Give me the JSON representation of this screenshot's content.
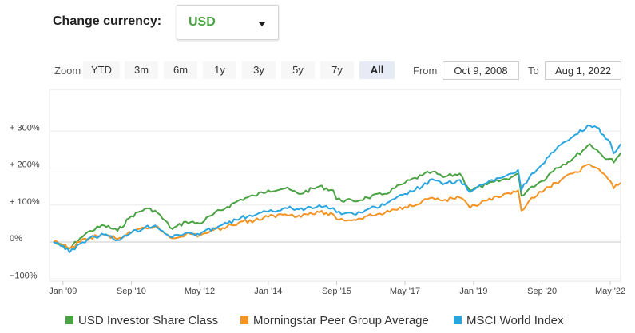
{
  "currency": {
    "label": "Change currency:",
    "selected": "USD"
  },
  "zoom": {
    "label": "Zoom",
    "buttons": [
      "YTD",
      "3m",
      "6m",
      "1y",
      "3y",
      "5y",
      "7y",
      "All"
    ],
    "active": "All"
  },
  "range": {
    "from_label": "From",
    "from_value": "Oct 9, 2008",
    "to_label": "To",
    "to_value": "Aug 1, 2022"
  },
  "colors": {
    "green": "#4aa343",
    "orange": "#f39321",
    "blue": "#2aa6df"
  },
  "chart_data": {
    "type": "line",
    "title": "",
    "xlabel": "",
    "ylabel": "",
    "ylim": [
      -100,
      350
    ],
    "xlim": [
      "2008-10-09",
      "2022-08-01"
    ],
    "y_ticks": [
      {
        "value": 300,
        "label": "+ 300%"
      },
      {
        "value": 200,
        "label": "+ 200%"
      },
      {
        "value": 100,
        "label": "+ 100%"
      },
      {
        "value": 0,
        "label": "0%"
      },
      {
        "value": -100,
        "label": "−100%"
      }
    ],
    "x_ticks": [
      {
        "date": "2009-01-01",
        "label": "Jan '09"
      },
      {
        "date": "2010-09-01",
        "label": "Sep '10"
      },
      {
        "date": "2012-05-01",
        "label": "May '12"
      },
      {
        "date": "2014-01-01",
        "label": "Jan '14"
      },
      {
        "date": "2015-09-01",
        "label": "Sep '15"
      },
      {
        "date": "2017-05-01",
        "label": "May '17"
      },
      {
        "date": "2019-01-01",
        "label": "Jan '19"
      },
      {
        "date": "2020-09-01",
        "label": "Sep '20"
      },
      {
        "date": "2022-05-01",
        "label": "May '22"
      }
    ],
    "legend_position": "bottom",
    "series": [
      {
        "name": "USD Investor Share Class",
        "color": "#4aa343",
        "points": [
          [
            "2008-10-09",
            0
          ],
          [
            "2009-01-01",
            -12
          ],
          [
            "2009-03-01",
            -18
          ],
          [
            "2009-06-01",
            10
          ],
          [
            "2009-09-01",
            30
          ],
          [
            "2010-01-01",
            45
          ],
          [
            "2010-05-01",
            30
          ],
          [
            "2010-09-01",
            70
          ],
          [
            "2011-01-01",
            90
          ],
          [
            "2011-04-01",
            85
          ],
          [
            "2011-09-01",
            35
          ],
          [
            "2012-01-01",
            55
          ],
          [
            "2012-05-01",
            50
          ],
          [
            "2012-09-01",
            75
          ],
          [
            "2013-01-01",
            95
          ],
          [
            "2013-05-01",
            115
          ],
          [
            "2013-09-01",
            125
          ],
          [
            "2014-01-01",
            140
          ],
          [
            "2014-06-01",
            145
          ],
          [
            "2014-10-01",
            130
          ],
          [
            "2015-04-01",
            150
          ],
          [
            "2015-08-01",
            140
          ],
          [
            "2015-09-01",
            115
          ],
          [
            "2016-02-01",
            110
          ],
          [
            "2016-06-01",
            120
          ],
          [
            "2016-11-01",
            130
          ],
          [
            "2017-05-01",
            160
          ],
          [
            "2017-10-01",
            180
          ],
          [
            "2018-01-01",
            190
          ],
          [
            "2018-04-01",
            175
          ],
          [
            "2018-09-01",
            185
          ],
          [
            "2018-12-01",
            140
          ],
          [
            "2019-05-01",
            155
          ],
          [
            "2019-12-01",
            175
          ],
          [
            "2020-02-01",
            185
          ],
          [
            "2020-03-01",
            125
          ],
          [
            "2020-06-01",
            150
          ],
          [
            "2020-09-01",
            165
          ],
          [
            "2021-01-01",
            200
          ],
          [
            "2021-06-01",
            225
          ],
          [
            "2021-11-01",
            265
          ],
          [
            "2022-01-01",
            250
          ],
          [
            "2022-03-01",
            230
          ],
          [
            "2022-05-01",
            225
          ],
          [
            "2022-06-01",
            215
          ],
          [
            "2022-08-01",
            240
          ]
        ]
      },
      {
        "name": "Morningstar Peer Group Average",
        "color": "#f39321",
        "points": [
          [
            "2008-10-09",
            0
          ],
          [
            "2009-01-01",
            -8
          ],
          [
            "2009-03-01",
            -18
          ],
          [
            "2009-06-01",
            0
          ],
          [
            "2009-09-01",
            12
          ],
          [
            "2010-01-01",
            20
          ],
          [
            "2010-05-01",
            8
          ],
          [
            "2010-09-01",
            25
          ],
          [
            "2011-01-01",
            38
          ],
          [
            "2011-04-01",
            42
          ],
          [
            "2011-09-01",
            10
          ],
          [
            "2012-01-01",
            22
          ],
          [
            "2012-05-01",
            18
          ],
          [
            "2012-09-01",
            32
          ],
          [
            "2013-01-01",
            42
          ],
          [
            "2013-05-01",
            55
          ],
          [
            "2013-09-01",
            58
          ],
          [
            "2014-01-01",
            68
          ],
          [
            "2014-06-01",
            75
          ],
          [
            "2014-10-01",
            72
          ],
          [
            "2015-04-01",
            80
          ],
          [
            "2015-08-01",
            75
          ],
          [
            "2015-09-01",
            62
          ],
          [
            "2016-02-01",
            60
          ],
          [
            "2016-06-01",
            70
          ],
          [
            "2016-11-01",
            78
          ],
          [
            "2017-05-01",
            95
          ],
          [
            "2017-10-01",
            110
          ],
          [
            "2018-01-01",
            120
          ],
          [
            "2018-04-01",
            112
          ],
          [
            "2018-09-01",
            120
          ],
          [
            "2018-12-01",
            92
          ],
          [
            "2019-05-01",
            112
          ],
          [
            "2019-12-01",
            130
          ],
          [
            "2020-02-01",
            140
          ],
          [
            "2020-03-01",
            85
          ],
          [
            "2020-06-01",
            120
          ],
          [
            "2020-09-01",
            135
          ],
          [
            "2021-01-01",
            160
          ],
          [
            "2021-06-01",
            185
          ],
          [
            "2021-11-01",
            210
          ],
          [
            "2022-01-01",
            200
          ],
          [
            "2022-03-01",
            185
          ],
          [
            "2022-05-01",
            165
          ],
          [
            "2022-06-01",
            145
          ],
          [
            "2022-08-01",
            160
          ]
        ]
      },
      {
        "name": "MSCI World Index",
        "color": "#2aa6df",
        "points": [
          [
            "2008-10-09",
            0
          ],
          [
            "2009-01-01",
            -10
          ],
          [
            "2009-03-01",
            -28
          ],
          [
            "2009-06-01",
            -5
          ],
          [
            "2009-09-01",
            12
          ],
          [
            "2010-01-01",
            20
          ],
          [
            "2010-05-01",
            5
          ],
          [
            "2010-09-01",
            25
          ],
          [
            "2011-01-01",
            40
          ],
          [
            "2011-04-01",
            45
          ],
          [
            "2011-09-01",
            12
          ],
          [
            "2012-01-01",
            25
          ],
          [
            "2012-05-01",
            20
          ],
          [
            "2012-09-01",
            38
          ],
          [
            "2013-01-01",
            50
          ],
          [
            "2013-05-01",
            65
          ],
          [
            "2013-09-01",
            72
          ],
          [
            "2014-01-01",
            82
          ],
          [
            "2014-06-01",
            92
          ],
          [
            "2014-10-01",
            88
          ],
          [
            "2015-04-01",
            100
          ],
          [
            "2015-08-01",
            92
          ],
          [
            "2015-09-01",
            80
          ],
          [
            "2016-02-01",
            75
          ],
          [
            "2016-06-01",
            88
          ],
          [
            "2016-11-01",
            100
          ],
          [
            "2017-05-01",
            130
          ],
          [
            "2017-10-01",
            150
          ],
          [
            "2018-01-01",
            170
          ],
          [
            "2018-04-01",
            155
          ],
          [
            "2018-09-01",
            168
          ],
          [
            "2018-12-01",
            135
          ],
          [
            "2019-05-01",
            160
          ],
          [
            "2019-12-01",
            185
          ],
          [
            "2020-02-01",
            195
          ],
          [
            "2020-03-01",
            140
          ],
          [
            "2020-06-01",
            185
          ],
          [
            "2020-09-01",
            210
          ],
          [
            "2021-01-01",
            250
          ],
          [
            "2021-06-01",
            285
          ],
          [
            "2021-11-01",
            315
          ],
          [
            "2022-01-01",
            310
          ],
          [
            "2022-03-01",
            290
          ],
          [
            "2022-05-01",
            270
          ],
          [
            "2022-06-01",
            240
          ],
          [
            "2022-08-01",
            265
          ]
        ]
      }
    ]
  }
}
